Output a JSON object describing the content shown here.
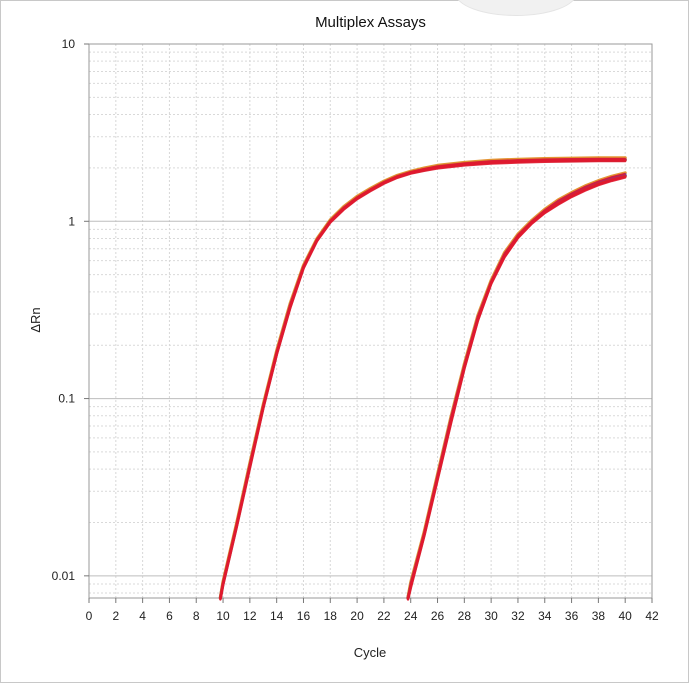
{
  "chart_data": {
    "type": "line",
    "title": "Multiplex Assays",
    "xlabel": "Cycle",
    "ylabel": "ΔRn",
    "xlim": [
      0,
      42
    ],
    "ylim": [
      0.0075,
      10
    ],
    "yscale": "log",
    "x_ticks": [
      "0",
      "2",
      "4",
      "6",
      "8",
      "10",
      "12",
      "14",
      "16",
      "18",
      "20",
      "22",
      "24",
      "26",
      "28",
      "30",
      "32",
      "34",
      "36",
      "38",
      "40",
      "42"
    ],
    "y_ticks": [
      {
        "value": 10,
        "label": "10"
      },
      {
        "value": 1,
        "label": "1"
      },
      {
        "value": 0.1,
        "label": "0.1"
      },
      {
        "value": 0.01,
        "label": "0.01"
      }
    ],
    "grid": true,
    "series_colors": [
      "#1f4fd0",
      "#1fa84a",
      "#e08a1e",
      "#7a2fa0",
      "#d42a2a",
      "#e0192f"
    ],
    "series": [
      {
        "group": "early",
        "x": [
          9.8,
          10,
          11,
          12,
          13,
          14,
          15,
          16,
          17,
          18,
          19,
          20,
          21,
          22,
          23,
          24,
          25,
          26,
          28,
          30,
          32,
          34,
          36,
          38,
          40
        ],
        "values": [
          0.0075,
          0.009,
          0.019,
          0.042,
          0.09,
          0.18,
          0.33,
          0.55,
          0.78,
          1.0,
          1.18,
          1.35,
          1.5,
          1.65,
          1.78,
          1.88,
          1.95,
          2.02,
          2.1,
          2.15,
          2.18,
          2.2,
          2.2,
          2.21,
          2.21
        ]
      },
      {
        "group": "early",
        "x": [
          9.8,
          10,
          11,
          12,
          13,
          14,
          15,
          16,
          17,
          18,
          19,
          20,
          21,
          22,
          23,
          24,
          25,
          26,
          28,
          30,
          32,
          34,
          36,
          38,
          40
        ],
        "values": [
          0.0075,
          0.0092,
          0.0195,
          0.043,
          0.092,
          0.185,
          0.34,
          0.56,
          0.79,
          1.01,
          1.2,
          1.37,
          1.52,
          1.67,
          1.8,
          1.9,
          1.98,
          2.05,
          2.13,
          2.19,
          2.22,
          2.24,
          2.25,
          2.26,
          2.26
        ]
      },
      {
        "group": "early",
        "x": [
          9.8,
          10,
          11,
          12,
          13,
          14,
          15,
          16,
          17,
          18,
          19,
          20,
          21,
          22,
          23,
          24,
          25,
          26,
          28,
          30,
          32,
          34,
          36,
          38,
          40
        ],
        "values": [
          0.0074,
          0.0089,
          0.0188,
          0.041,
          0.089,
          0.178,
          0.325,
          0.545,
          0.775,
          0.99,
          1.17,
          1.34,
          1.49,
          1.64,
          1.77,
          1.87,
          1.94,
          2.0,
          2.08,
          2.13,
          2.16,
          2.18,
          2.19,
          2.2,
          2.2
        ]
      },
      {
        "group": "late",
        "x": [
          23.8,
          24,
          25,
          26,
          27,
          28,
          29,
          30,
          31,
          32,
          33,
          34,
          35,
          36,
          37,
          38,
          39,
          40
        ],
        "values": [
          0.0075,
          0.0088,
          0.017,
          0.036,
          0.075,
          0.15,
          0.28,
          0.45,
          0.64,
          0.82,
          0.98,
          1.13,
          1.27,
          1.4,
          1.52,
          1.63,
          1.72,
          1.8
        ]
      },
      {
        "group": "late",
        "x": [
          23.8,
          24,
          25,
          26,
          27,
          28,
          29,
          30,
          31,
          32,
          33,
          34,
          35,
          36,
          37,
          38,
          39,
          40
        ],
        "values": [
          0.0075,
          0.0091,
          0.0175,
          0.037,
          0.078,
          0.155,
          0.29,
          0.46,
          0.66,
          0.84,
          1.0,
          1.16,
          1.31,
          1.44,
          1.57,
          1.68,
          1.78,
          1.86
        ]
      },
      {
        "group": "late",
        "x": [
          23.8,
          24,
          25,
          26,
          27,
          28,
          29,
          30,
          31,
          32,
          33,
          34,
          35,
          36,
          37,
          38,
          39,
          40
        ],
        "values": [
          0.0074,
          0.0086,
          0.0168,
          0.035,
          0.073,
          0.148,
          0.275,
          0.445,
          0.63,
          0.81,
          0.97,
          1.12,
          1.25,
          1.38,
          1.5,
          1.61,
          1.7,
          1.78
        ]
      }
    ]
  }
}
